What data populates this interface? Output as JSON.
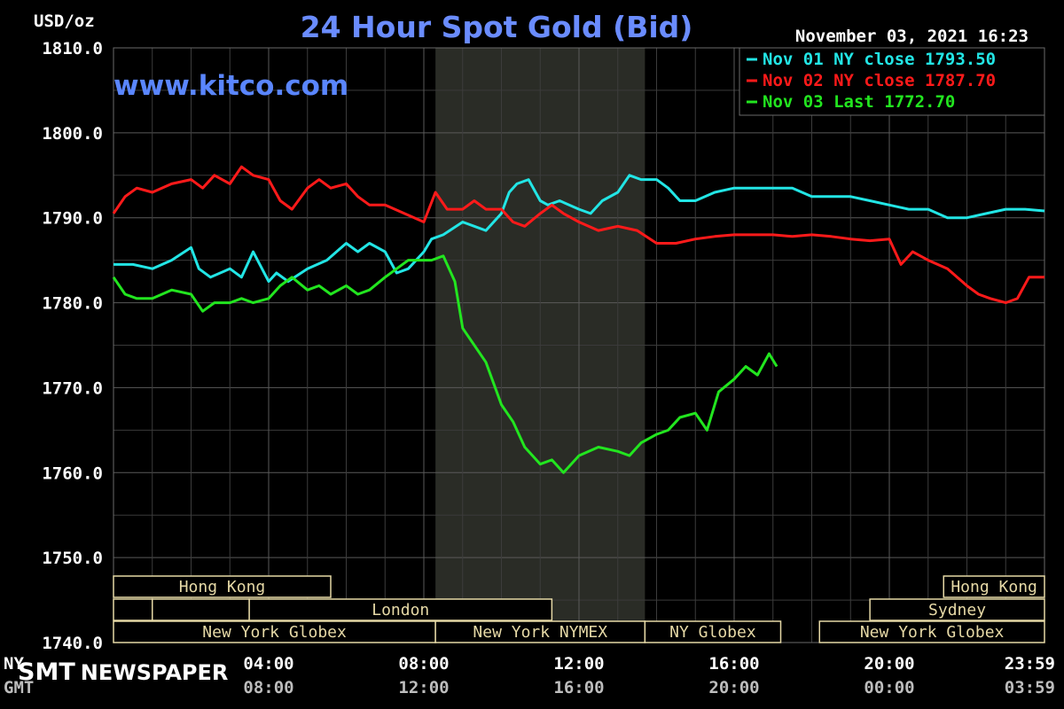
{
  "chart_data": {
    "type": "line",
    "title": "24 Hour Spot Gold (Bid)",
    "ylabel": "USD/oz",
    "watermark": "www.kitco.com",
    "timestamp": "November 03, 2021 16:23",
    "ylim": [
      1740,
      1810
    ],
    "xlim": [
      0,
      24
    ],
    "y_ticks": [
      "1810.0",
      "1800.0",
      "1790.0",
      "1780.0",
      "1770.0",
      "1760.0",
      "1750.0",
      "1740.0"
    ],
    "x_ticks": [
      {
        "x": 4,
        "top": "04:00",
        "bottom": "08:00"
      },
      {
        "x": 8,
        "top": "08:00",
        "bottom": "12:00"
      },
      {
        "x": 12,
        "top": "12:00",
        "bottom": "16:00"
      },
      {
        "x": 16,
        "top": "16:00",
        "bottom": "20:00"
      },
      {
        "x": 20,
        "top": "20:00",
        "bottom": "00:00"
      },
      {
        "x": 24,
        "top": "23:59",
        "bottom": "03:59"
      }
    ],
    "x_row_labels": {
      "top": "NY",
      "bottom": "GMT"
    },
    "highlight": {
      "x0": 8.3,
      "x1": 13.7
    },
    "grid": true,
    "legend_position": "top-right",
    "series": [
      {
        "name": "Nov 01 NY close 1793.50",
        "color": "#22e5e5",
        "x": [
          0,
          0.5,
          1,
          1.5,
          2,
          2.2,
          2.5,
          3,
          3.3,
          3.6,
          4,
          4.2,
          4.5,
          5,
          5.5,
          6,
          6.3,
          6.6,
          7,
          7.3,
          7.6,
          8,
          8.2,
          8.5,
          9,
          9.3,
          9.6,
          10,
          10.2,
          10.4,
          10.7,
          11,
          11.2,
          11.5,
          12,
          12.3,
          12.6,
          13,
          13.3,
          13.6,
          14,
          14.3,
          14.6,
          15,
          15.5,
          16,
          16.5,
          17,
          17.5,
          18,
          18.5,
          19,
          19.5,
          20,
          20.5,
          21,
          21.5,
          22,
          22.5,
          23,
          23.5,
          24
        ],
        "y": [
          1784.5,
          1784.5,
          1784,
          1785,
          1786.5,
          1784,
          1783,
          1784,
          1783,
          1786,
          1782.5,
          1783.5,
          1782.5,
          1784,
          1785,
          1787,
          1786,
          1787,
          1786,
          1783.5,
          1784,
          1786,
          1787.5,
          1788,
          1789.5,
          1789,
          1788.5,
          1790.5,
          1793,
          1794,
          1794.5,
          1792,
          1791.5,
          1792,
          1791,
          1790.5,
          1792,
          1793,
          1795,
          1794.5,
          1794.5,
          1793.5,
          1792,
          1792,
          1793,
          1793.5,
          1793.5,
          1793.5,
          1793.5,
          1792.5,
          1792.5,
          1792.5,
          1792,
          1791.5,
          1791,
          1791,
          1790,
          1790,
          1790.5,
          1791,
          1791,
          1790.8
        ]
      },
      {
        "name": "Nov 02 NY close 1787.70",
        "color": "#ff1a1a",
        "x": [
          0,
          0.3,
          0.6,
          1,
          1.5,
          2,
          2.3,
          2.6,
          3,
          3.3,
          3.6,
          4,
          4.3,
          4.6,
          5,
          5.3,
          5.6,
          6,
          6.3,
          6.6,
          7,
          7.5,
          8,
          8.3,
          8.6,
          9,
          9.3,
          9.6,
          10,
          10.3,
          10.6,
          11,
          11.3,
          11.6,
          12,
          12.5,
          13,
          13.5,
          14,
          14.5,
          15,
          15.5,
          16,
          16.5,
          17,
          17.5,
          18,
          18.5,
          19,
          19.5,
          20,
          20.3,
          20.6,
          21,
          21.5,
          22,
          22.3,
          22.6,
          23,
          23.3,
          23.6,
          24
        ],
        "y": [
          1790.5,
          1792.5,
          1793.5,
          1793,
          1794,
          1794.5,
          1793.5,
          1795,
          1794,
          1796,
          1795,
          1794.5,
          1792,
          1791,
          1793.5,
          1794.5,
          1793.5,
          1794,
          1792.5,
          1791.5,
          1791.5,
          1790.5,
          1789.5,
          1793,
          1791,
          1791,
          1792,
          1791,
          1791,
          1789.5,
          1789,
          1790.5,
          1791.5,
          1790.5,
          1789.5,
          1788.5,
          1789,
          1788.5,
          1787,
          1787,
          1787.5,
          1787.8,
          1788,
          1788,
          1788,
          1787.8,
          1788,
          1787.8,
          1787.5,
          1787.3,
          1787.5,
          1784.5,
          1786,
          1785,
          1784,
          1782,
          1781,
          1780.5,
          1780,
          1780.5,
          1783,
          1783
        ]
      },
      {
        "name": "Nov 03 Last 1772.70",
        "color": "#22e51f",
        "x": [
          0,
          0.3,
          0.6,
          1,
          1.5,
          2,
          2.3,
          2.6,
          3,
          3.3,
          3.6,
          4,
          4.3,
          4.6,
          5,
          5.3,
          5.6,
          6,
          6.3,
          6.6,
          7,
          7.3,
          7.6,
          8,
          8.2,
          8.5,
          8.8,
          9,
          9.3,
          9.6,
          10,
          10.3,
          10.6,
          11,
          11.3,
          11.6,
          12,
          12.5,
          13,
          13.3,
          13.6,
          14,
          14.3,
          14.6,
          15,
          15.3,
          15.6,
          16,
          16.3,
          16.6,
          16.9,
          17.1
        ],
        "y": [
          1783,
          1781,
          1780.5,
          1780.5,
          1781.5,
          1781,
          1779,
          1780,
          1780,
          1780.5,
          1780,
          1780.5,
          1782,
          1783,
          1781.5,
          1782,
          1781,
          1782,
          1781,
          1781.5,
          1783,
          1784,
          1785,
          1785,
          1785,
          1785.5,
          1782.5,
          1777,
          1775,
          1773,
          1768,
          1766,
          1763,
          1761,
          1761.5,
          1760,
          1762,
          1763,
          1762.5,
          1762,
          1763.5,
          1764.5,
          1765,
          1766.5,
          1767,
          1765,
          1769.5,
          1771,
          1772.5,
          1771.5,
          1774,
          1772.5
        ]
      }
    ],
    "sessions": [
      {
        "label": "Hong Kong",
        "row": 0,
        "x0": 0,
        "x1": 5.6
      },
      {
        "label": "Hong Kong",
        "row": 0,
        "x0": 21.4,
        "x1": 24
      },
      {
        "label": "",
        "row": 1,
        "x0": 0,
        "x1": 1
      },
      {
        "label": "",
        "row": 1,
        "x0": 1,
        "x1": 3.5
      },
      {
        "label": "London",
        "row": 1,
        "x0": 3.5,
        "x1": 11.3
      },
      {
        "label": "Sydney",
        "row": 1,
        "x0": 19.5,
        "x1": 24
      },
      {
        "label": "New York Globex",
        "row": 2,
        "x0": 0,
        "x1": 8.3
      },
      {
        "label": "New York NYMEX",
        "row": 2,
        "x0": 8.3,
        "x1": 13.7
      },
      {
        "label": "NY Globex",
        "row": 2,
        "x0": 13.7,
        "x1": 17.2
      },
      {
        "label": "New York Globex",
        "row": 2,
        "x0": 18.2,
        "x1": 24
      }
    ]
  },
  "footer": {
    "brand_strong": "SMT",
    "brand_rest": "NEWSPAPER"
  }
}
